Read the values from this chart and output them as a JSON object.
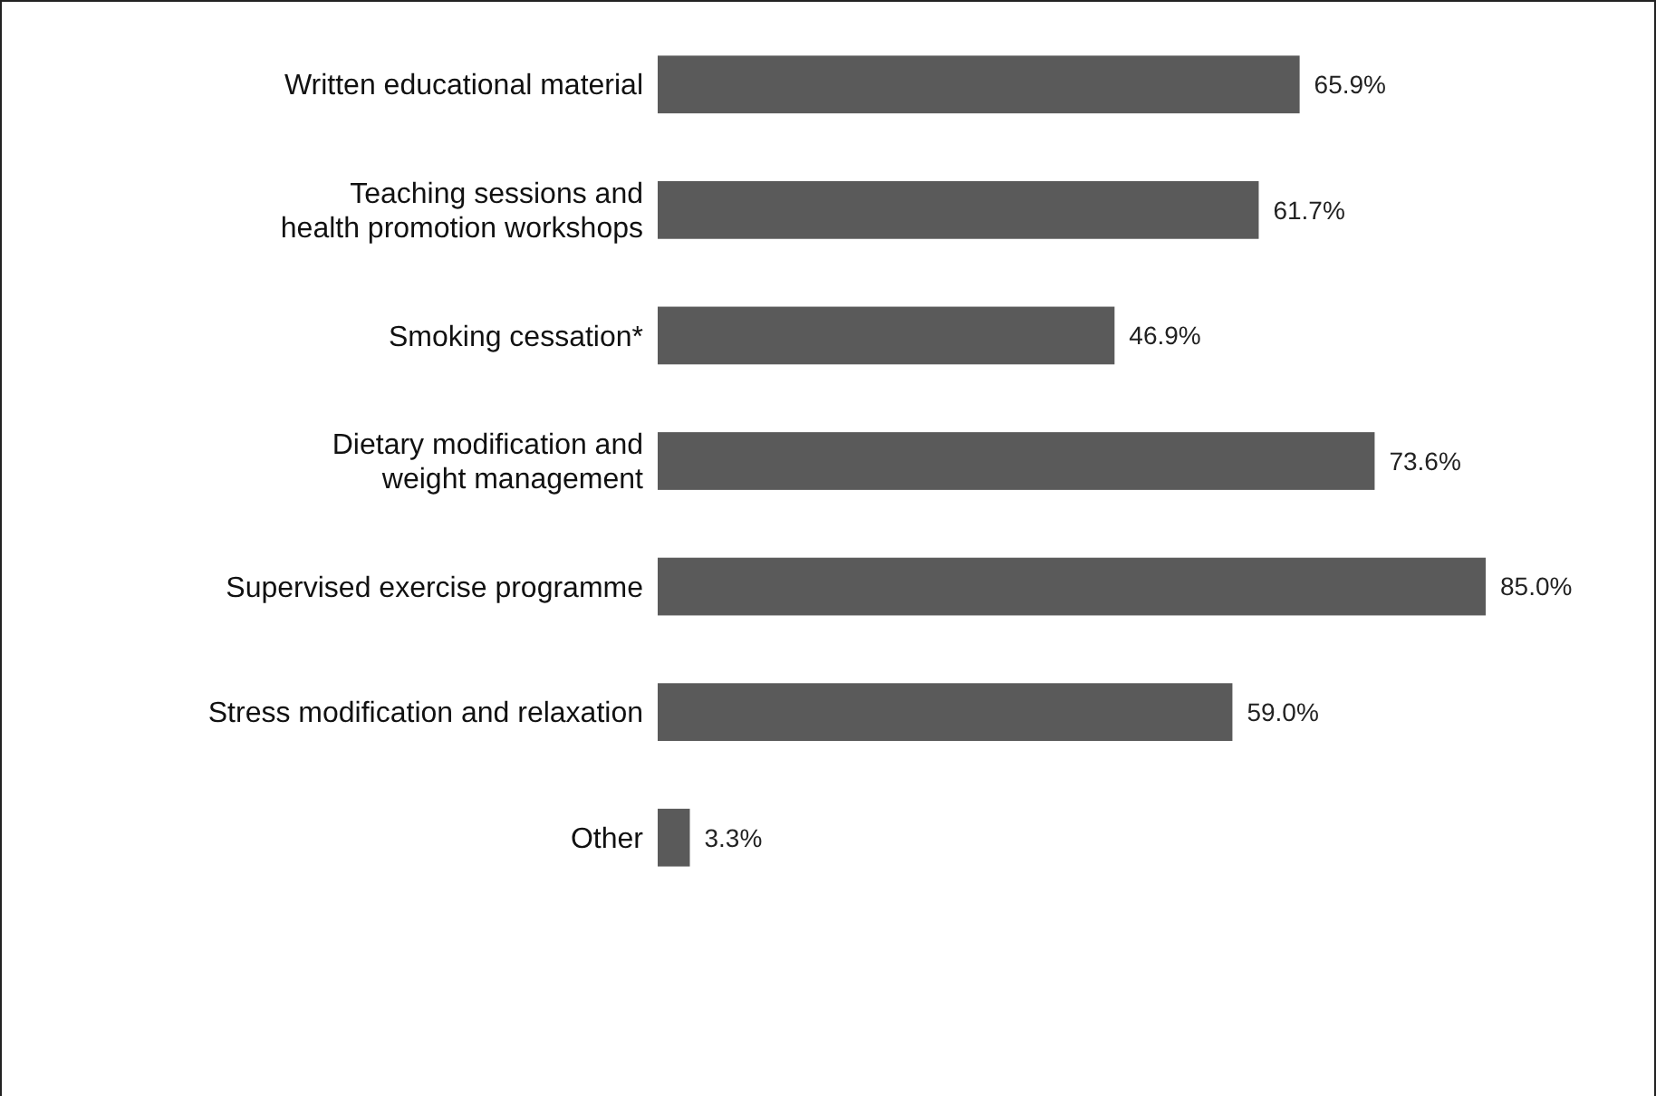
{
  "chart_data": {
    "type": "bar",
    "orientation": "horizontal",
    "categories": [
      "Written educational material",
      "Teaching sessions and\nhealth promotion workshops",
      "Smoking cessation*",
      "Dietary modification and\nweight management",
      "Supervised exercise programme",
      "Stress modification and relaxation",
      "Other"
    ],
    "values": [
      65.9,
      61.7,
      46.9,
      73.6,
      85.0,
      59.0,
      3.3
    ],
    "value_labels": [
      "65.9%",
      "61.7%",
      "46.9%",
      "73.6%",
      "85.0%",
      "59.0%",
      "3.3%"
    ],
    "color": "#5a5a5a",
    "tick_labels": "y"
  }
}
